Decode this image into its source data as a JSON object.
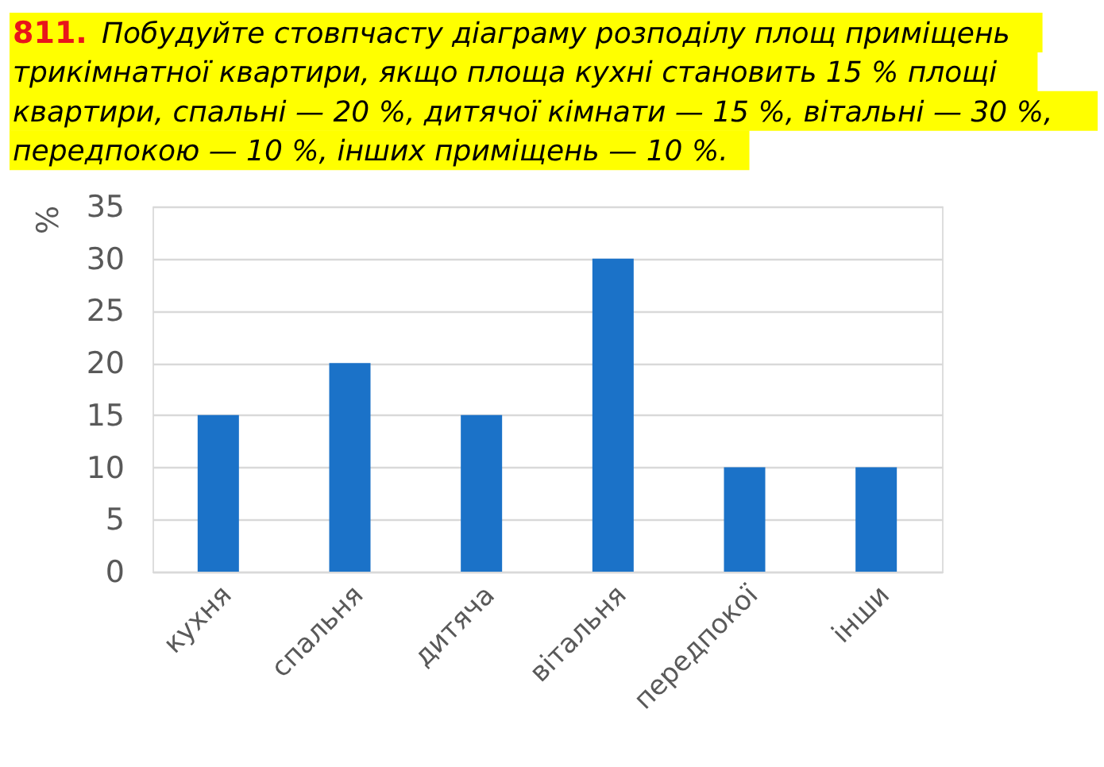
{
  "chart_data": {
    "type": "bar",
    "title": "811. Побудуйте стовпчасту діаграму розподілу площ приміщень трикімнатної квартири, якщо площа кухні становить 15 % площі квартири, спальні — 20 %, дитячої кімнати — 15 %, вітальні — 30 %, передпокою — 10 %, інших приміщень — 10 %.",
    "ylabel": "%",
    "categories": [
      "кухня",
      "спальня",
      "дитяча",
      "вітальня",
      "передпокої",
      "інши"
    ],
    "values": [
      15,
      20,
      15,
      30,
      10,
      10
    ],
    "color": "#1b72c8",
    "ylim": [
      0,
      35
    ],
    "yticks": [
      0,
      5,
      10,
      15,
      20,
      25,
      30,
      35
    ],
    "grid": "y"
  }
}
